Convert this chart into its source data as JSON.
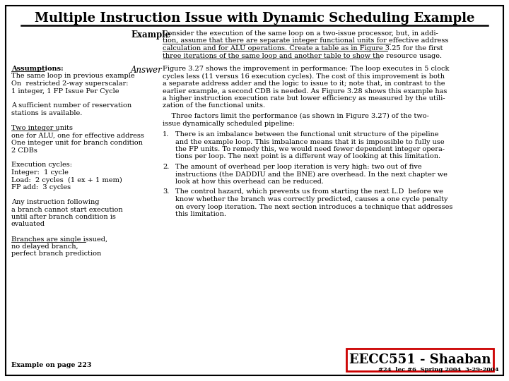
{
  "title": "Multiple Instruction Issue with Dynamic Scheduling Example",
  "background_color": "#ffffff",
  "border_color": "#000000",
  "title_fontsize": 13,
  "title_font": "serif",
  "example_label": "Example",
  "answer_label": "Answer",
  "example_text_lines": [
    "Consider the execution of the same loop on a two-issue processor, but, in addi-",
    "tion, assume that there are separate integer functional units for effective address",
    "calculation and for ALU operations. Create a table as in Figure 3.25 for the first",
    "three iterations of the same loop and another table to show the resource usage."
  ],
  "example_underline_lines": [
    1,
    2,
    3
  ],
  "answer_para1_lines": [
    "Figure 3.27 shows the improvement in performance: The loop executes in 5 clock",
    "cycles less (11 versus 16 execution cycles). The cost of this improvement is both",
    "a separate address adder and the logic to issue to it; note that, in contrast to the",
    "earlier example, a second CDB is needed. As Figure 3.28 shows this example has",
    "a higher instruction execution rate but lower efficiency as measured by the utili-",
    "zation of the functional units."
  ],
  "answer_para2_lines": [
    "    Three factors limit the performance (as shown in Figure 3.27) of the two-",
    "issue dynamically scheduled pipeline:"
  ],
  "answer_item1_lines": [
    "There is an imbalance between the functional unit structure of the pipeline",
    "and the example loop. This imbalance means that it is impossible to fully use",
    "the FP units. To remedy this, we would need fewer dependent integer opera-",
    "tions per loop. The next point is a different way of looking at this limitation."
  ],
  "answer_item2_lines": [
    "The amount of overhead per loop iteration is very high: two out of five",
    "instructions (the DADDIU and the BNE) are overhead. In the next chapter we",
    "look at how this overhead can be reduced."
  ],
  "answer_item3_lines": [
    "The control hazard, which prevents us from starting the next L.D  before we",
    "know whether the branch was correctly predicted, causes a one cycle penalty",
    "on every loop iteration. The next section introduces a technique that addresses",
    "this limitation."
  ],
  "assump_sections": [
    {
      "lines": [
        "Assumptions:"
      ],
      "bold": true,
      "underline": true
    },
    {
      "lines": [
        "The same loop in previous example",
        "On  restricted 2-way superscalar:",
        "1 integer, 1 FP Issue Per Cycle"
      ],
      "bold": false,
      "underline": false
    },
    {
      "lines": [
        ""
      ],
      "bold": false,
      "underline": false
    },
    {
      "lines": [
        "A sufficient number of reservation",
        "stations is available."
      ],
      "bold": false,
      "underline": false
    },
    {
      "lines": [
        ""
      ],
      "bold": false,
      "underline": false
    },
    {
      "lines": [
        "Two integer units"
      ],
      "bold": false,
      "underline": true
    },
    {
      "lines": [
        "one for ALU, one for effective address",
        "One integer unit for branch condition",
        "2 CDBs"
      ],
      "bold": false,
      "underline": false
    },
    {
      "lines": [
        ""
      ],
      "bold": false,
      "underline": false
    },
    {
      "lines": [
        "Execution cycles:",
        "Integer:  1 cycle",
        "Load:  2 cycles  (1 ex + 1 mem)",
        "FP add:  3 cycles"
      ],
      "bold": false,
      "underline": false
    },
    {
      "lines": [
        ""
      ],
      "bold": false,
      "underline": false
    },
    {
      "lines": [
        "Any instruction following",
        "a branch cannot start execution",
        "until after branch condition is",
        "evaluated"
      ],
      "bold": false,
      "underline": false
    },
    {
      "lines": [
        ""
      ],
      "bold": false,
      "underline": false
    },
    {
      "lines": [
        "Branches are single issued,"
      ],
      "bold": false,
      "underline": true
    },
    {
      "lines": [
        "no delayed branch,",
        "perfect branch prediction"
      ],
      "bold": false,
      "underline": false
    }
  ],
  "bottom_left": "Example on page 223",
  "eecc_text": "EECC551 - Shaaban",
  "bottom_right": "#24  lec #6  Spring 2004  3-29-2004"
}
